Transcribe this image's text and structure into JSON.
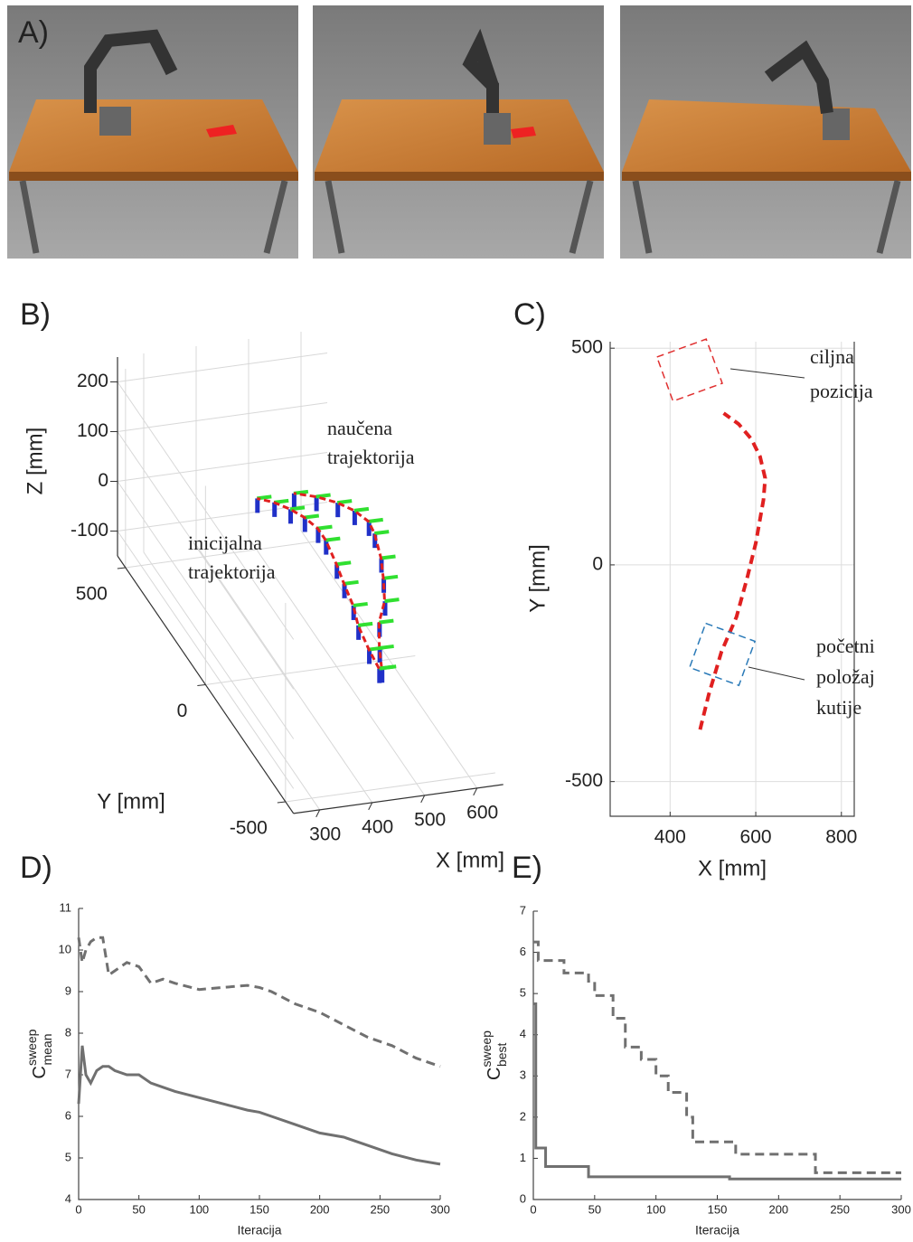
{
  "panel_a": {
    "label": "A)"
  },
  "chart_data": [
    {
      "type": "line3d",
      "label": "B)",
      "xlabel": "X [mm]",
      "ylabel": "Y [mm]",
      "zlabel": "Z [mm]",
      "xlim": [
        250,
        650
      ],
      "ylim": [
        -550,
        550
      ],
      "zlim": [
        -150,
        250
      ],
      "xticks": [
        300,
        400,
        500,
        600
      ],
      "yticks": [
        -500,
        0,
        500
      ],
      "zticks": [
        -100,
        0,
        100,
        200
      ],
      "grid": true,
      "annotations": [
        {
          "lines": [
            "naučena",
            "trajektorija"
          ]
        },
        {
          "lines": [
            "inicijalna",
            "trajektorija"
          ]
        }
      ],
      "series": [
        {
          "color": "#e02020",
          "x": [
            470,
            490,
            520,
            555,
            580,
            600,
            618,
            622,
            610,
            590,
            560,
            525
          ],
          "y": [
            -380,
            -300,
            -200,
            -120,
            -30,
            50,
            150,
            200,
            250,
            290,
            325,
            350
          ],
          "values": [
            30,
            30,
            30,
            30,
            30,
            30,
            30,
            30,
            30,
            30,
            30,
            30
          ]
        },
        {
          "color": "#e02020",
          "x": [
            465,
            470,
            480,
            495,
            505,
            515,
            525,
            525,
            515,
            500,
            480,
            455
          ],
          "y": [
            -380,
            -300,
            -200,
            -120,
            -30,
            50,
            150,
            200,
            250,
            290,
            325,
            350
          ],
          "values": [
            30,
            30,
            30,
            30,
            30,
            30,
            30,
            30,
            30,
            30,
            30,
            30
          ]
        }
      ]
    },
    {
      "type": "line",
      "label": "C)",
      "xlabel": "X [mm]",
      "ylabel": "Y [mm]",
      "xlim": [
        260,
        830
      ],
      "ylim": [
        -580,
        515
      ],
      "xticks": [
        400,
        600,
        800
      ],
      "yticks": [
        -500,
        0,
        500
      ],
      "grid": true,
      "annotations": [
        {
          "lines": [
            "ciljna",
            "pozicija"
          ]
        },
        {
          "lines": [
            "početni",
            "položaj",
            "kutije"
          ]
        }
      ],
      "series": [
        {
          "color": "#e02020",
          "x": [
            470,
            490,
            520,
            555,
            580,
            600,
            618,
            622,
            610,
            590,
            560,
            525
          ],
          "values": [
            -380,
            -300,
            -200,
            -120,
            -30,
            50,
            150,
            200,
            250,
            290,
            325,
            350
          ]
        }
      ]
    },
    {
      "type": "line",
      "label": "D)",
      "xlabel": "Iteracija",
      "ylabel": {
        "base": "C",
        "sup": "sweep",
        "sub": "mean"
      },
      "xlim": [
        0,
        300
      ],
      "ylim": [
        4,
        11
      ],
      "xticks": [
        0,
        50,
        100,
        150,
        200,
        250,
        300
      ],
      "yticks": [
        4,
        5,
        6,
        7,
        8,
        9,
        10,
        11
      ],
      "grid": false,
      "series": [
        {
          "color": "#707070",
          "dashed": true,
          "x": [
            0,
            3,
            6,
            10,
            15,
            20,
            25,
            30,
            40,
            50,
            60,
            70,
            80,
            100,
            120,
            140,
            150,
            160,
            180,
            200,
            220,
            240,
            260,
            280,
            300
          ],
          "values": [
            10.3,
            9.7,
            10.0,
            10.2,
            10.3,
            10.3,
            9.4,
            9.5,
            9.7,
            9.6,
            9.2,
            9.3,
            9.2,
            9.05,
            9.1,
            9.15,
            9.1,
            9.0,
            8.7,
            8.5,
            8.2,
            7.9,
            7.7,
            7.4,
            7.2
          ]
        },
        {
          "color": "#707070",
          "dashed": false,
          "x": [
            0,
            3,
            6,
            10,
            15,
            20,
            25,
            30,
            40,
            50,
            60,
            70,
            80,
            100,
            120,
            140,
            150,
            160,
            180,
            200,
            220,
            240,
            260,
            280,
            300
          ],
          "values": [
            6.3,
            7.7,
            7.0,
            6.8,
            7.1,
            7.2,
            7.2,
            7.1,
            7.0,
            7.0,
            6.8,
            6.7,
            6.6,
            6.45,
            6.3,
            6.15,
            6.1,
            6.0,
            5.8,
            5.6,
            5.5,
            5.3,
            5.1,
            4.95,
            4.85
          ]
        }
      ]
    },
    {
      "type": "step",
      "label": "E)",
      "xlabel": "Iteracija",
      "ylabel": {
        "base": "C",
        "sup": "sweep",
        "sub": "best"
      },
      "xlim": [
        0,
        300
      ],
      "ylim": [
        0,
        7
      ],
      "xticks": [
        0,
        50,
        100,
        150,
        200,
        250,
        300
      ],
      "yticks": [
        0,
        1,
        2,
        3,
        4,
        5,
        6,
        7
      ],
      "grid": false,
      "series": [
        {
          "color": "#707070",
          "dashed": true,
          "x": [
            0,
            4,
            25,
            45,
            50,
            65,
            75,
            88,
            100,
            110,
            125,
            130,
            145,
            165,
            190,
            215,
            230,
            300
          ],
          "values": [
            6.25,
            5.8,
            5.5,
            5.3,
            4.95,
            4.4,
            3.7,
            3.4,
            3.0,
            2.6,
            2.0,
            1.4,
            1.4,
            1.1,
            1.1,
            1.1,
            0.65,
            0.65
          ]
        },
        {
          "color": "#707070",
          "dashed": false,
          "x": [
            0,
            2,
            10,
            45,
            160,
            300
          ],
          "values": [
            4.75,
            1.25,
            0.8,
            0.55,
            0.5,
            0.5
          ]
        }
      ]
    }
  ]
}
